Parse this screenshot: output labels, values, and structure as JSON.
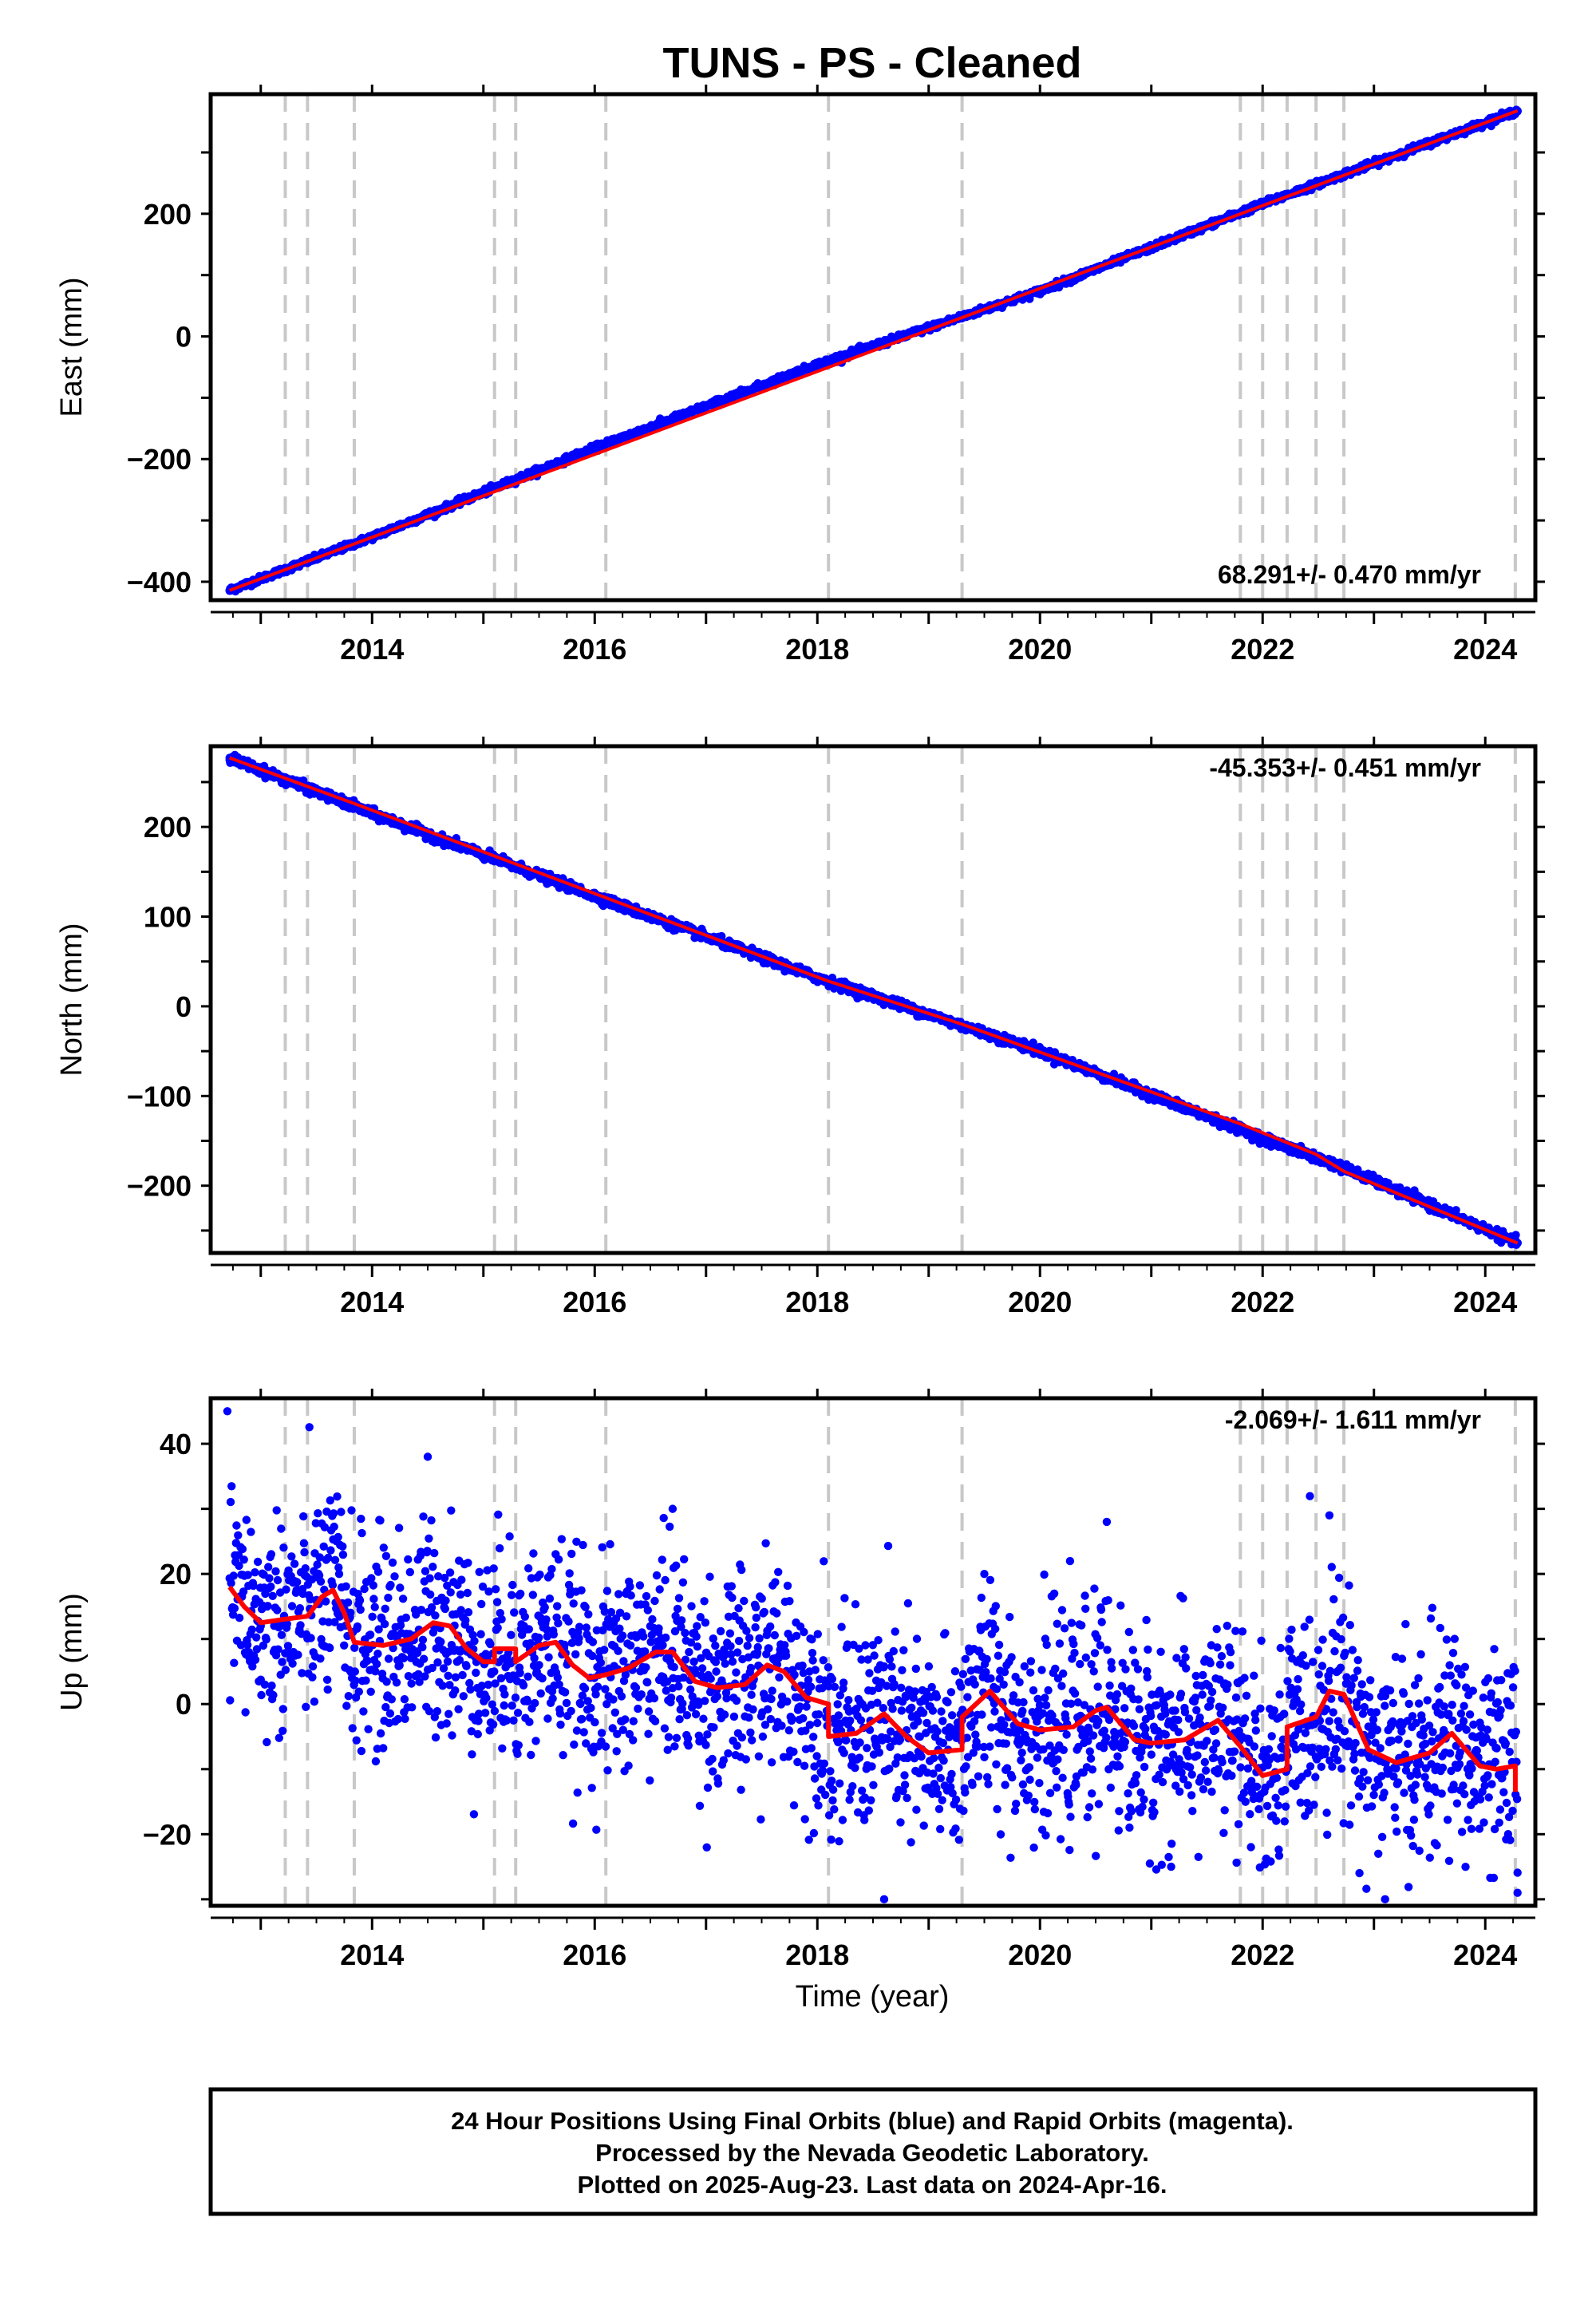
{
  "title": "TUNS  - PS - Cleaned",
  "xlabel": "Time (year)",
  "footer": {
    "line1": "24 Hour Positions Using Final Orbits (blue) and Rapid Orbits (magenta).",
    "line2": "Processed by the Nevada Geodetic Laboratory.",
    "line3": "Plotted on 2025-Aug-23. Last data on 2024-Apr-16."
  },
  "colors": {
    "points": "#0000ff",
    "fit": "#ff0000",
    "event_lines": "#c8c8c8",
    "frame": "#000000"
  },
  "chart_data": [
    {
      "type": "scatter",
      "name": "east",
      "ylabel": "East (mm)",
      "rate_label": "68.291+/- 0.470 mm/yr",
      "xlim": [
        2012.55,
        2024.45
      ],
      "ylim": [
        -430,
        395
      ],
      "x_ticks": [
        2014,
        2016,
        2018,
        2020,
        2022,
        2024
      ],
      "y_ticks": [
        -400,
        -200,
        0,
        200
      ],
      "grid": false,
      "x_range_data": [
        2012.72,
        2024.29
      ],
      "series": [
        {
          "name": "",
          "values": [
            [
              2012.72,
              -414
            ],
            [
              2014.0,
              -327
            ],
            [
              2016.0,
              -182
            ],
            [
              2018.0,
              -46
            ],
            [
              2020.0,
              74
            ],
            [
              2022.0,
              216
            ],
            [
              2024.29,
              368
            ]
          ]
        }
      ],
      "fit_line": [
        [
          2012.72,
          -414
        ],
        [
          2024.29,
          368
        ]
      ],
      "event_lines_x": [
        2013.22,
        2013.42,
        2013.84,
        2015.1,
        2015.29,
        2016.1,
        2018.1,
        2019.3,
        2021.8,
        2022.0,
        2022.22,
        2022.48,
        2022.73,
        2024.27
      ]
    },
    {
      "type": "scatter",
      "name": "north",
      "ylabel": "North (mm)",
      "rate_label": "-45.353+/- 0.451 mm/yr",
      "xlim": [
        2012.55,
        2024.45
      ],
      "ylim": [
        -275,
        290
      ],
      "x_ticks": [
        2014,
        2016,
        2018,
        2020,
        2022,
        2024
      ],
      "y_ticks": [
        -200,
        -100,
        0,
        100,
        200
      ],
      "grid": false,
      "x_range_data": [
        2012.72,
        2024.29
      ],
      "series": [
        {
          "name": "",
          "values": [
            [
              2012.72,
              277
            ],
            [
              2014.0,
              215
            ],
            [
              2016.0,
              123
            ],
            [
              2018.0,
              32
            ],
            [
              2020.0,
              -50
            ],
            [
              2022.0,
              -147
            ],
            [
              2022.73,
              -180
            ],
            [
              2024.29,
              -264
            ]
          ]
        }
      ],
      "fit_line": [
        [
          2012.72,
          277
        ],
        [
          2013.84,
          226
        ],
        [
          2016.1,
          121
        ],
        [
          2018.1,
          28
        ],
        [
          2019.3,
          -20
        ],
        [
          2021.8,
          -131
        ],
        [
          2022.48,
          -165
        ],
        [
          2022.73,
          -184
        ],
        [
          2024.29,
          -264
        ]
      ],
      "event_lines_x": [
        2013.22,
        2013.42,
        2013.84,
        2015.1,
        2015.29,
        2016.1,
        2018.1,
        2019.3,
        2021.8,
        2022.0,
        2022.22,
        2022.48,
        2022.73,
        2024.27
      ]
    },
    {
      "type": "scatter",
      "name": "up",
      "ylabel": "Up (mm)",
      "rate_label": "-2.069+/- 1.611 mm/yr",
      "xlim": [
        2012.55,
        2024.45
      ],
      "ylim": [
        -31,
        47
      ],
      "x_ticks": [
        2014,
        2016,
        2018,
        2020,
        2022,
        2024
      ],
      "y_ticks": [
        -20,
        0,
        20,
        40
      ],
      "grid": false,
      "x_range_data": [
        2012.72,
        2024.29
      ],
      "point_scatter_mm": 8,
      "series": [
        {
          "name": "",
          "values": [
            [
              2012.7,
              45
            ],
            [
              2013.0,
              12
            ],
            [
              2013.5,
              16
            ],
            [
              2014.5,
              38
            ],
            [
              2015.5,
              6
            ],
            [
              2016.7,
              30
            ],
            [
              2018.6,
              -30
            ],
            [
              2019.5,
              20
            ],
            [
              2020.6,
              28
            ],
            [
              2022.6,
              29
            ],
            [
              2023.1,
              -30
            ],
            [
              2024.29,
              -29
            ]
          ]
        }
      ],
      "fit_line": [
        [
          2012.72,
          18
        ],
        [
          2012.85,
          15
        ],
        [
          2013.0,
          12.5
        ],
        [
          2013.2,
          13
        ],
        [
          2013.42,
          13.5
        ],
        [
          2013.55,
          16.5
        ],
        [
          2013.65,
          17.5
        ],
        [
          2013.75,
          14
        ],
        [
          2013.84,
          9.5
        ],
        [
          2014.1,
          9
        ],
        [
          2014.35,
          10
        ],
        [
          2014.55,
          12.5
        ],
        [
          2014.7,
          12
        ],
        [
          2014.85,
          8.5
        ],
        [
          2015.0,
          6.5
        ],
        [
          2015.1,
          6.5
        ],
        [
          2015.1,
          8.5
        ],
        [
          2015.29,
          8.5
        ],
        [
          2015.29,
          6.5
        ],
        [
          2015.5,
          9
        ],
        [
          2015.65,
          9.5
        ],
        [
          2015.8,
          6
        ],
        [
          2015.95,
          4
        ],
        [
          2016.1,
          4.5
        ],
        [
          2016.3,
          5.5
        ],
        [
          2016.55,
          8
        ],
        [
          2016.7,
          8
        ],
        [
          2016.9,
          3.5
        ],
        [
          2017.1,
          2.5
        ],
        [
          2017.35,
          3
        ],
        [
          2017.55,
          6
        ],
        [
          2017.7,
          5
        ],
        [
          2017.9,
          1
        ],
        [
          2018.1,
          0
        ],
        [
          2018.1,
          -5
        ],
        [
          2018.35,
          -4.5
        ],
        [
          2018.6,
          -1.5
        ],
        [
          2018.8,
          -5
        ],
        [
          2019.0,
          -7.5
        ],
        [
          2019.3,
          -7
        ],
        [
          2019.3,
          -2
        ],
        [
          2019.55,
          2
        ],
        [
          2019.8,
          -3
        ],
        [
          2020.0,
          -4
        ],
        [
          2020.3,
          -3.5
        ],
        [
          2020.5,
          -1
        ],
        [
          2020.6,
          -0.5
        ],
        [
          2020.85,
          -5.5
        ],
        [
          2021.0,
          -6
        ],
        [
          2021.3,
          -5.5
        ],
        [
          2021.6,
          -2.5
        ],
        [
          2021.8,
          -6.5
        ],
        [
          2022.0,
          -11
        ],
        [
          2022.22,
          -10
        ],
        [
          2022.22,
          -3.5
        ],
        [
          2022.48,
          -2
        ],
        [
          2022.6,
          2
        ],
        [
          2022.73,
          1.5
        ],
        [
          2022.95,
          -7
        ],
        [
          2023.2,
          -9
        ],
        [
          2023.5,
          -7.5
        ],
        [
          2023.7,
          -4.5
        ],
        [
          2023.95,
          -9.5
        ],
        [
          2024.1,
          -10
        ],
        [
          2024.27,
          -9.5
        ],
        [
          2024.27,
          -13.5
        ]
      ],
      "event_lines_x": [
        2013.22,
        2013.42,
        2013.84,
        2015.1,
        2015.29,
        2016.1,
        2018.1,
        2019.3,
        2021.8,
        2022.0,
        2022.22,
        2022.48,
        2022.73,
        2024.27
      ]
    }
  ]
}
